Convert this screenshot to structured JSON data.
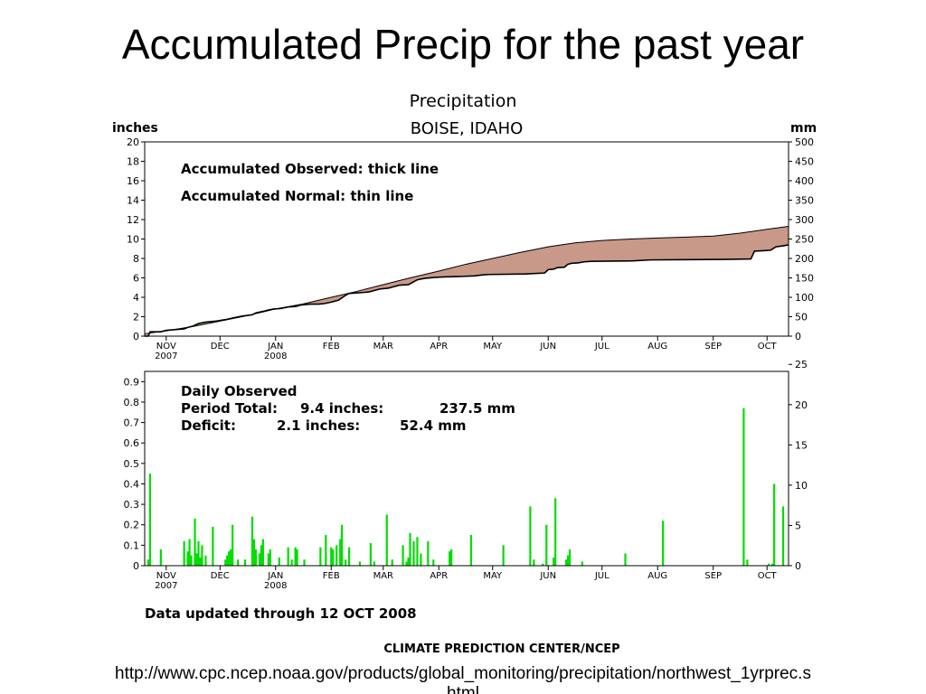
{
  "slide": {
    "title": "Accumulated Precip for the past year",
    "url_line1": "http://www.cpc.ncep.noaa.gov/products/global_monitoring/precipitation/northwest_1yrprec.s",
    "url_line2": "html"
  },
  "figure": {
    "title": "Precipitation",
    "location": "BOISE, IDAHO",
    "updated": "Data updated through 12 OCT 2008",
    "credit": "CLIMATE PREDICTION CENTER/NCEP",
    "colors": {
      "surplus": "#80e080",
      "deficit": "#c89888",
      "daily_bar": "#00dd00",
      "line": "#000000"
    }
  },
  "chart_data": [
    {
      "type": "area",
      "name": "accumulated",
      "ylabel_left": "inches",
      "ylabel_right": "mm",
      "ylim": [
        0,
        20
      ],
      "yticks_left": [
        0,
        2,
        4,
        6,
        8,
        10,
        12,
        14,
        16,
        18,
        20
      ],
      "yticks_right": [
        0,
        50,
        100,
        150,
        200,
        250,
        300,
        350,
        400,
        450,
        500
      ],
      "legend": [
        "Accumulated Observed: thick line",
        "Accumulated Normal: thin line"
      ],
      "months": [
        {
          "label": "NOV",
          "year": "2007",
          "day": 0
        },
        {
          "label": "DEC",
          "year": "",
          "day": 30
        },
        {
          "label": "JAN",
          "year": "2008",
          "day": 61
        },
        {
          "label": "FEB",
          "year": "",
          "day": 92
        },
        {
          "label": "MAR",
          "year": "",
          "day": 121
        },
        {
          "label": "APR",
          "year": "",
          "day": 152
        },
        {
          "label": "MAY",
          "year": "",
          "day": 182
        },
        {
          "label": "JUN",
          "year": "",
          "day": 213
        },
        {
          "label": "JUL",
          "year": "",
          "day": 243
        },
        {
          "label": "AUG",
          "year": "",
          "day": 274
        },
        {
          "label": "SEP",
          "year": "",
          "day": 305
        },
        {
          "label": "OCT",
          "year": "",
          "day": 335
        }
      ],
      "x_days_range": [
        -12,
        347
      ],
      "normal": [
        [
          -12,
          0.25
        ],
        [
          0,
          0.55
        ],
        [
          15,
          1.0
        ],
        [
          30,
          1.55
        ],
        [
          45,
          2.1
        ],
        [
          61,
          2.8
        ],
        [
          76,
          3.3
        ],
        [
          92,
          4.0
        ],
        [
          106,
          4.6
        ],
        [
          121,
          5.3
        ],
        [
          136,
          6.0
        ],
        [
          152,
          6.7
        ],
        [
          167,
          7.4
        ],
        [
          182,
          8.0
        ],
        [
          197,
          8.6
        ],
        [
          213,
          9.2
        ],
        [
          228,
          9.6
        ],
        [
          243,
          9.85
        ],
        [
          259,
          10.0
        ],
        [
          274,
          10.1
        ],
        [
          290,
          10.2
        ],
        [
          305,
          10.3
        ],
        [
          320,
          10.6
        ],
        [
          335,
          11.0
        ],
        [
          347,
          11.3
        ]
      ],
      "observed": [
        [
          -12,
          0.0
        ],
        [
          -10,
          0.0
        ],
        [
          -9,
          0.45
        ],
        [
          -3,
          0.45
        ],
        [
          0,
          0.6
        ],
        [
          7,
          0.7
        ],
        [
          10,
          0.75
        ],
        [
          12,
          0.9
        ],
        [
          15,
          1.05
        ],
        [
          18,
          1.3
        ],
        [
          22,
          1.45
        ],
        [
          28,
          1.55
        ],
        [
          33,
          1.7
        ],
        [
          38,
          1.9
        ],
        [
          42,
          2.05
        ],
        [
          48,
          2.2
        ],
        [
          50,
          2.4
        ],
        [
          54,
          2.55
        ],
        [
          57,
          2.7
        ],
        [
          60,
          2.8
        ],
        [
          64,
          2.85
        ],
        [
          68,
          3.0
        ],
        [
          72,
          3.05
        ],
        [
          75,
          3.2
        ],
        [
          80,
          3.3
        ],
        [
          85,
          3.3
        ],
        [
          88,
          3.35
        ],
        [
          92,
          3.5
        ],
        [
          96,
          3.7
        ],
        [
          100,
          4.2
        ],
        [
          102,
          4.4
        ],
        [
          106,
          4.45
        ],
        [
          110,
          4.5
        ],
        [
          113,
          4.55
        ],
        [
          116,
          4.7
        ],
        [
          119,
          4.85
        ],
        [
          124,
          4.95
        ],
        [
          126,
          5.05
        ],
        [
          130,
          5.25
        ],
        [
          135,
          5.3
        ],
        [
          138,
          5.6
        ],
        [
          140,
          5.8
        ],
        [
          144,
          5.95
        ],
        [
          150,
          6.05
        ],
        [
          155,
          6.1
        ],
        [
          165,
          6.15
        ],
        [
          172,
          6.2
        ],
        [
          176,
          6.3
        ],
        [
          180,
          6.35
        ],
        [
          200,
          6.4
        ],
        [
          211,
          6.5
        ],
        [
          213,
          6.85
        ],
        [
          216,
          6.9
        ],
        [
          218,
          7.05
        ],
        [
          222,
          7.1
        ],
        [
          224,
          7.4
        ],
        [
          226,
          7.5
        ],
        [
          230,
          7.55
        ],
        [
          233,
          7.65
        ],
        [
          237,
          7.7
        ],
        [
          260,
          7.75
        ],
        [
          270,
          7.85
        ],
        [
          310,
          7.9
        ],
        [
          326,
          7.95
        ],
        [
          328,
          8.75
        ],
        [
          333,
          8.8
        ],
        [
          337,
          8.85
        ],
        [
          340,
          9.2
        ],
        [
          344,
          9.3
        ],
        [
          347,
          9.4
        ]
      ]
    },
    {
      "type": "bar",
      "name": "daily",
      "title": "Daily Observed",
      "ylabel_left": "",
      "ylim": [
        0,
        0.95
      ],
      "yticks_left": [
        0,
        0.1,
        0.2,
        0.3,
        0.4,
        0.5,
        0.6,
        0.7,
        0.8,
        0.9
      ],
      "yticks_right": [
        0,
        5,
        10,
        15,
        20,
        25
      ],
      "ylim_right": [
        0,
        25
      ],
      "period_total": {
        "label": "Period Total:",
        "inches": "9.4 inches:",
        "mm": "237.5 mm"
      },
      "deficit": {
        "label": "Deficit:",
        "inches": "2.1 inches:",
        "mm": "52.4 mm"
      },
      "bars": [
        [
          -10,
          0.03
        ],
        [
          -9,
          0.45
        ],
        [
          -3,
          0.08
        ],
        [
          10,
          0.12
        ],
        [
          12,
          0.07
        ],
        [
          13,
          0.13
        ],
        [
          14,
          0.05
        ],
        [
          16,
          0.23
        ],
        [
          17,
          0.06
        ],
        [
          18,
          0.12
        ],
        [
          19,
          0.04
        ],
        [
          20,
          0.1
        ],
        [
          22,
          0.05
        ],
        [
          26,
          0.19
        ],
        [
          33,
          0.03
        ],
        [
          34,
          0.05
        ],
        [
          35,
          0.07
        ],
        [
          36,
          0.08
        ],
        [
          37,
          0.2
        ],
        [
          40,
          0.03
        ],
        [
          44,
          0.03
        ],
        [
          48,
          0.24
        ],
        [
          49,
          0.13
        ],
        [
          50,
          0.08
        ],
        [
          52,
          0.06
        ],
        [
          53,
          0.1
        ],
        [
          54,
          0.13
        ],
        [
          57,
          0.06
        ],
        [
          58,
          0.08
        ],
        [
          63,
          0.04
        ],
        [
          68,
          0.09
        ],
        [
          70,
          0.03
        ],
        [
          72,
          0.09
        ],
        [
          73,
          0.08
        ],
        [
          77,
          0.03
        ],
        [
          86,
          0.09
        ],
        [
          89,
          0.15
        ],
        [
          92,
          0.09
        ],
        [
          93,
          0.08
        ],
        [
          95,
          0.1
        ],
        [
          97,
          0.13
        ],
        [
          98,
          0.2
        ],
        [
          100,
          0.03
        ],
        [
          102,
          0.09
        ],
        [
          108,
          0.02
        ],
        [
          114,
          0.11
        ],
        [
          116,
          0.02
        ],
        [
          123,
          0.25
        ],
        [
          126,
          0.03
        ],
        [
          132,
          0.1
        ],
        [
          134,
          0.02
        ],
        [
          135,
          0.04
        ],
        [
          136,
          0.16
        ],
        [
          138,
          0.12
        ],
        [
          140,
          0.14
        ],
        [
          142,
          0.06
        ],
        [
          146,
          0.12
        ],
        [
          149,
          0.03
        ],
        [
          158,
          0.07
        ],
        [
          159,
          0.08
        ],
        [
          170,
          0.15
        ],
        [
          188,
          0.1
        ],
        [
          203,
          0.29
        ],
        [
          205,
          0.03
        ],
        [
          210,
          0.01
        ],
        [
          212,
          0.2
        ],
        [
          216,
          0.04
        ],
        [
          217,
          0.33
        ],
        [
          223,
          0.03
        ],
        [
          224,
          0.05
        ],
        [
          225,
          0.08
        ],
        [
          232,
          0.02
        ],
        [
          256,
          0.06
        ],
        [
          277,
          0.22
        ],
        [
          322,
          0.77
        ],
        [
          324,
          0.03
        ],
        [
          336,
          0.01
        ],
        [
          338,
          0.01
        ],
        [
          339,
          0.4
        ],
        [
          344,
          0.29
        ]
      ]
    }
  ]
}
